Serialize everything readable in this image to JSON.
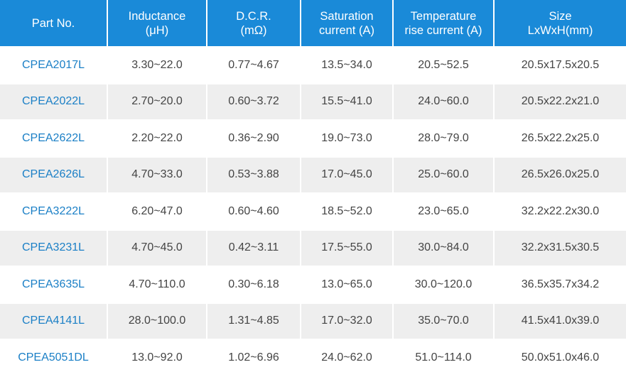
{
  "table": {
    "headers": [
      [
        "Part No."
      ],
      [
        "Inductance",
        "(μH)"
      ],
      [
        "D.C.R.",
        "(mΩ)"
      ],
      [
        "Saturation",
        "current (A)"
      ],
      [
        "Temperature",
        "rise current (A)"
      ],
      [
        "Size",
        "LxWxH(mm)"
      ]
    ],
    "rows": [
      [
        "CPEA2017L",
        "3.30~22.0",
        "0.77~4.67",
        "13.5~34.0",
        "20.5~52.5",
        "20.5x17.5x20.5"
      ],
      [
        "CPEA2022L",
        "2.70~20.0",
        "0.60~3.72",
        "15.5~41.0",
        "24.0~60.0",
        "20.5x22.2x21.0"
      ],
      [
        "CPEA2622L",
        "2.20~22.0",
        "0.36~2.90",
        "19.0~73.0",
        "28.0~79.0",
        "26.5x22.2x25.0"
      ],
      [
        "CPEA2626L",
        "4.70~33.0",
        "0.53~3.88",
        "17.0~45.0",
        "25.0~60.0",
        "26.5x26.0x25.0"
      ],
      [
        "CPEA3222L",
        "6.20~47.0",
        "0.60~4.60",
        "18.5~52.0",
        "23.0~65.0",
        "32.2x22.2x30.0"
      ],
      [
        "CPEA3231L",
        "4.70~45.0",
        "0.42~3.11",
        "17.5~55.0",
        "30.0~84.0",
        "32.2x31.5x30.5"
      ],
      [
        "CPEA3635L",
        "4.70~110.0",
        "0.30~6.18",
        "13.0~65.0",
        "30.0~120.0",
        "36.5x35.7x34.2"
      ],
      [
        "CPEA4141L",
        "28.0~100.0",
        "1.31~4.85",
        "17.0~32.0",
        "35.0~70.0",
        "41.5x41.0x39.0"
      ],
      [
        "CPEA5051DL",
        "13.0~92.0",
        "1.02~6.96",
        "24.0~62.0",
        "51.0~114.0",
        "50.0x51.0x46.0"
      ]
    ]
  },
  "colors": {
    "header_bg": "#1a8ad8",
    "part_text": "#1a7fc6",
    "stripe": "#eeeeee"
  }
}
